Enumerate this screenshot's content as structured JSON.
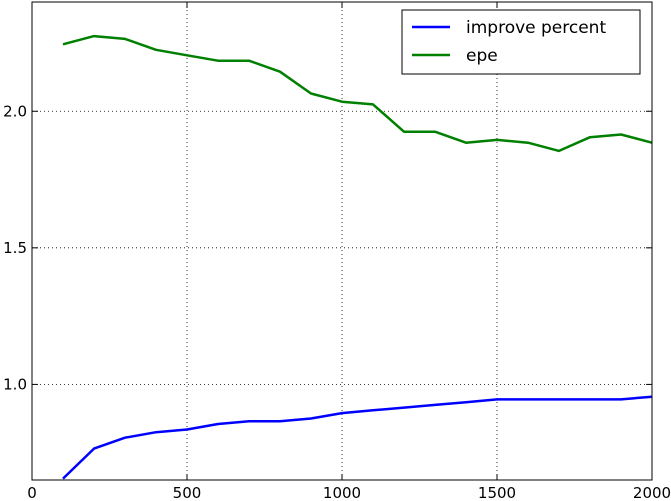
{
  "chart_data": {
    "type": "line",
    "title": "",
    "xlabel": "",
    "ylabel": "",
    "xlim": [
      0,
      2000
    ],
    "ylim": [
      0.65,
      2.4
    ],
    "xticks": [
      0,
      500,
      1000,
      1500,
      2000
    ],
    "xtick_labels": [
      "0",
      "500",
      "1000",
      "1500",
      "2000"
    ],
    "yticks": [
      1.0,
      1.5,
      2.0
    ],
    "ytick_labels": [
      "1.0",
      "1.5",
      "2.0"
    ],
    "grid": true,
    "legend_position": "top-right",
    "x": [
      100,
      200,
      300,
      400,
      500,
      600,
      700,
      800,
      900,
      1000,
      1100,
      1200,
      1300,
      1400,
      1500,
      1600,
      1700,
      1800,
      1900,
      2000
    ],
    "series": [
      {
        "name": "improve percent",
        "color": "#0000ff",
        "values": [
          0.655,
          0.765,
          0.805,
          0.825,
          0.835,
          0.855,
          0.865,
          0.865,
          0.875,
          0.895,
          0.905,
          0.915,
          0.925,
          0.935,
          0.945,
          0.945,
          0.945,
          0.945,
          0.945,
          0.955
        ]
      },
      {
        "name": "epe",
        "color": "#008000",
        "values": [
          2.245,
          2.275,
          2.265,
          2.225,
          2.205,
          2.185,
          2.185,
          2.145,
          2.065,
          2.035,
          2.025,
          1.925,
          1.925,
          1.885,
          1.895,
          1.885,
          1.855,
          1.905,
          1.915,
          1.885
        ]
      }
    ]
  }
}
